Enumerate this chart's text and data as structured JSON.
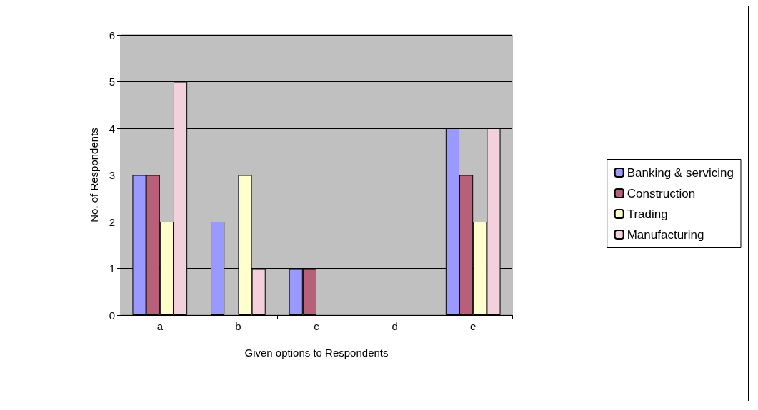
{
  "chart_data": {
    "type": "bar",
    "xlabel": "Given options to Respondents",
    "ylabel": "No. of Respondents",
    "categories": [
      "a",
      "b",
      "c",
      "d",
      "e"
    ],
    "series": [
      {
        "name": "Banking & servicing",
        "color": "#9999ff",
        "values": [
          3,
          2,
          1,
          0,
          4
        ]
      },
      {
        "name": "Construction",
        "color": "#b8607a",
        "values": [
          3,
          0,
          1,
          0,
          3
        ]
      },
      {
        "name": "Trading",
        "color": "#ffffcc",
        "values": [
          2,
          3,
          0,
          0,
          2
        ]
      },
      {
        "name": "Manufacturing",
        "color": "#f2d0dc",
        "values": [
          5,
          1,
          0,
          0,
          4
        ]
      }
    ],
    "ylim": [
      0,
      6
    ],
    "yticks": [
      0,
      1,
      2,
      3,
      4,
      5,
      6
    ],
    "grid": "y",
    "legend": "right"
  }
}
